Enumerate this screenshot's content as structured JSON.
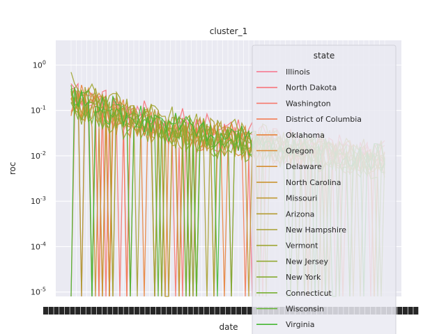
{
  "chart_data": {
    "type": "line",
    "title": "cluster_1",
    "xlabel": "date",
    "ylabel": "roc",
    "yscale": "log",
    "ylim": [
      8e-06,
      3.5
    ],
    "yticks": [
      {
        "value": 1,
        "label": "10^0"
      },
      {
        "value": 0.1,
        "label": "10^-1"
      },
      {
        "value": 0.01,
        "label": "10^-2"
      },
      {
        "value": 0.001,
        "label": "10^-3"
      },
      {
        "value": 0.0001,
        "label": "10^-4"
      },
      {
        "value": 1e-05,
        "label": "10^-5"
      }
    ],
    "grid": true,
    "legend_title": "state",
    "legend_position": "upper-right",
    "series": [
      {
        "name": "Illinois",
        "color": "#f77189",
        "values": [
          0.21,
          0.14,
          0.09,
          0.06,
          0.045,
          0.035,
          0.028,
          0.022,
          0.018,
          0.015,
          0.013,
          0.011,
          0.01,
          0.009,
          0.008
        ]
      },
      {
        "name": "North Dakota",
        "color": "#f7737a",
        "values": [
          0.3,
          0.18,
          0.12,
          0.08,
          0.06,
          0.05,
          0.04,
          0.033,
          0.027,
          0.022,
          0.019,
          0.016,
          0.014,
          0.012,
          0.011
        ]
      },
      {
        "name": "Washington",
        "color": "#f6776b",
        "values": [
          0.18,
          0.11,
          0.075,
          0.055,
          0.042,
          0.033,
          0.027,
          0.022,
          0.018,
          0.015,
          0.013,
          0.011,
          0.01,
          0.009,
          0.008
        ]
      },
      {
        "name": "District of Columbia",
        "color": "#f37c55",
        "values": [
          0.15,
          0.1,
          0.07,
          0.05,
          0.04,
          0.032,
          0.026,
          0.021,
          0.017,
          0.014,
          0.012,
          0.01,
          0.009,
          0.008,
          0.007
        ]
      },
      {
        "name": "Oklahoma",
        "color": "#e8823a",
        "values": [
          0.22,
          0.15,
          0.1,
          0.07,
          0.05,
          0.04,
          0.032,
          0.026,
          0.021,
          0.018,
          0.015,
          0.013,
          0.011,
          0.01,
          0.009
        ]
      },
      {
        "name": "Oregon",
        "color": "#de8a32",
        "values": [
          0.16,
          0.1,
          0.07,
          0.05,
          0.038,
          0.03,
          0.024,
          0.02,
          0.016,
          0.014,
          0.012,
          0.01,
          0.009,
          0.008,
          0.007
        ]
      },
      {
        "name": "Delaware",
        "color": "#d48e32",
        "values": [
          0.19,
          0.12,
          0.08,
          0.058,
          0.044,
          0.035,
          0.028,
          0.023,
          0.019,
          0.016,
          0.013,
          0.011,
          0.01,
          0.009,
          0.008
        ]
      },
      {
        "name": "North Carolina",
        "color": "#c99432",
        "values": [
          0.14,
          0.09,
          0.065,
          0.048,
          0.037,
          0.029,
          0.024,
          0.019,
          0.016,
          0.013,
          0.011,
          0.01,
          0.009,
          0.008,
          0.007
        ]
      },
      {
        "name": "Missouri",
        "color": "#bf9832",
        "values": [
          0.17,
          0.11,
          0.075,
          0.054,
          0.041,
          0.032,
          0.026,
          0.021,
          0.018,
          0.015,
          0.012,
          0.011,
          0.009,
          0.008,
          0.007
        ]
      },
      {
        "name": "Arizona",
        "color": "#b39c31",
        "values": [
          0.2,
          0.13,
          0.09,
          0.062,
          0.047,
          0.037,
          0.03,
          0.024,
          0.02,
          0.017,
          0.014,
          0.012,
          0.01,
          0.009,
          0.008
        ]
      },
      {
        "name": "New Hampshire",
        "color": "#a8a031",
        "values": [
          0.25,
          0.16,
          0.11,
          0.075,
          0.056,
          0.044,
          0.035,
          0.029,
          0.024,
          0.02,
          0.017,
          0.014,
          0.012,
          0.011,
          0.01
        ]
      },
      {
        "name": "Vermont",
        "color": "#9ea531",
        "values": [
          0.35,
          0.2,
          0.13,
          0.09,
          0.065,
          0.05,
          0.04,
          0.033,
          0.027,
          0.022,
          0.019,
          0.016,
          0.014,
          0.012,
          0.011
        ]
      },
      {
        "name": "New Jersey",
        "color": "#93a831",
        "values": [
          0.13,
          0.085,
          0.06,
          0.045,
          0.035,
          0.028,
          0.023,
          0.019,
          0.016,
          0.013,
          0.011,
          0.01,
          0.009,
          0.008,
          0.007
        ]
      },
      {
        "name": "New York",
        "color": "#86ab31",
        "values": [
          0.12,
          0.08,
          0.058,
          0.043,
          0.034,
          0.027,
          0.022,
          0.018,
          0.015,
          0.013,
          0.011,
          0.009,
          0.008,
          0.007,
          0.006
        ]
      },
      {
        "name": "Connecticut",
        "color": "#77af31",
        "values": [
          0.16,
          0.1,
          0.07,
          0.052,
          0.04,
          0.031,
          0.025,
          0.021,
          0.017,
          0.014,
          0.012,
          0.01,
          0.009,
          0.008,
          0.007
        ]
      },
      {
        "name": "Wisconsin",
        "color": "#61b331",
        "values": [
          0.19,
          0.12,
          0.085,
          0.06,
          0.046,
          0.036,
          0.029,
          0.024,
          0.02,
          0.017,
          0.014,
          0.012,
          0.01,
          0.009,
          0.008
        ]
      },
      {
        "name": "Virginia",
        "color": "#45b733",
        "values": [
          0.23,
          0.14,
          0.095,
          0.067,
          0.05,
          0.039,
          0.031,
          0.026,
          0.021,
          0.018,
          0.015,
          0.013,
          0.011,
          0.01,
          0.009
        ]
      }
    ]
  }
}
